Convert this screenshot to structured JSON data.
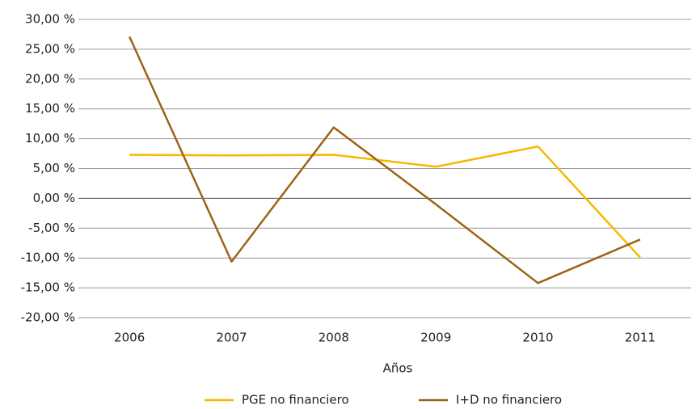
{
  "chart_data": {
    "type": "line",
    "x_label": "Años",
    "categories": [
      "2006",
      "2007",
      "2008",
      "2009",
      "2010",
      "2011"
    ],
    "series": [
      {
        "name": "PGE no financiero",
        "color": "#f5b800",
        "values": [
          7.3,
          7.2,
          7.3,
          5.3,
          8.7,
          -9.9
        ]
      },
      {
        "name": "I+D no financiero",
        "color": "#9c6415",
        "values": [
          27.1,
          -10.6,
          11.9,
          -1.0,
          -14.2,
          -6.9
        ]
      }
    ],
    "ylim": [
      -20,
      30
    ],
    "yticks": [
      {
        "value": -20,
        "label": "-20,00 %"
      },
      {
        "value": -15,
        "label": "-15,00 %"
      },
      {
        "value": -10,
        "label": "-10,00 %"
      },
      {
        "value": -5,
        "label": "-5,00 %"
      },
      {
        "value": 0,
        "label": "0,00 %"
      },
      {
        "value": 5,
        "label": "5,00 %"
      },
      {
        "value": 10,
        "label": "10,00 %"
      },
      {
        "value": 15,
        "label": "15,00 %"
      },
      {
        "value": 20,
        "label": "20,00 %"
      },
      {
        "value": 25,
        "label": "25,00 %"
      },
      {
        "value": 30,
        "label": "30,00 %"
      }
    ],
    "grid": true,
    "legend": "bottom"
  }
}
